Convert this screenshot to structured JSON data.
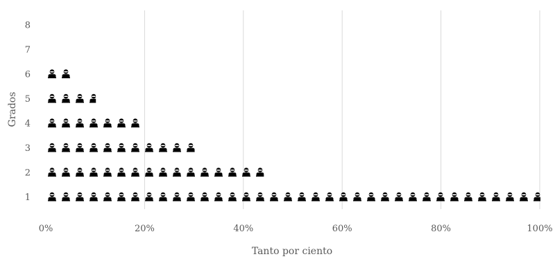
{
  "chart_data": {
    "type": "bar",
    "orientation": "horizontal",
    "style": "pictograph",
    "icon": "person-icon",
    "icon_color": "#000000",
    "categories": [
      "1",
      "2",
      "3",
      "4",
      "5",
      "6",
      "7",
      "8"
    ],
    "values": [
      100,
      44,
      30,
      19,
      10,
      5,
      0,
      0
    ],
    "xlabel": "Tanto por ciento",
    "ylabel": "Grados",
    "xlim": [
      0,
      100
    ],
    "xticks": [
      "0%",
      "20%",
      "40%",
      "60%",
      "80%",
      "100%"
    ],
    "grid": "vertical",
    "legend": "none"
  }
}
